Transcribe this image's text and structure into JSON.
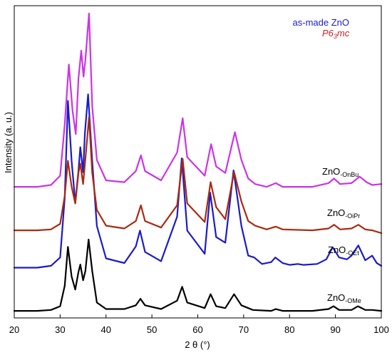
{
  "chart_data": {
    "type": "line",
    "xlabel": "2 θ (°)",
    "ylabel": "Intensity (a. u.)",
    "xlim": [
      20,
      100
    ],
    "xticks": [
      "20",
      "30",
      "40",
      "50",
      "60",
      "70",
      "80",
      "90",
      "100"
    ],
    "grid": false,
    "legend_position": "top-right",
    "legend": [
      {
        "text": "as-made ZnO",
        "color": "#1a1acc"
      },
      {
        "main": "P6",
        "sub": "3",
        "tail": "mc",
        "color": "#cc2222"
      }
    ],
    "series": [
      {
        "name": "ZnO-OMe",
        "label_main": "ZnO",
        "label_sub": "-OMe",
        "color": "#000000",
        "x": [
          20,
          25,
          28,
          30,
          31,
          31.7,
          32.5,
          33.3,
          34.0,
          34.4,
          35.0,
          35.5,
          36.2,
          37.0,
          38,
          40,
          44,
          46.5,
          47.5,
          48.5,
          52,
          55.5,
          56.6,
          57.7,
          61.5,
          62.8,
          64,
          66,
          67.9,
          69.5,
          72,
          76,
          77,
          78.5,
          85,
          88.5,
          89.6,
          90.8,
          93.5,
          94.9,
          96.5,
          98,
          100
        ],
        "y": [
          0.3,
          0.3,
          0.4,
          0.8,
          3.0,
          7.2,
          4.0,
          2.6,
          4.5,
          5.3,
          3.6,
          4.6,
          8.0,
          4.6,
          1.2,
          0.5,
          0.5,
          0.9,
          1.6,
          0.9,
          0.5,
          1.4,
          2.9,
          1.2,
          0.6,
          2.1,
          0.8,
          0.6,
          2.1,
          0.9,
          0.4,
          0.3,
          0.5,
          0.3,
          0.3,
          0.5,
          0.8,
          0.4,
          0.4,
          0.8,
          0.4,
          0.4,
          0.3
        ]
      },
      {
        "name": "ZnO-OEt",
        "label_main": "ZnO",
        "label_sub": "-OEt",
        "color": "#1a1acc",
        "x": [
          20,
          25,
          28,
          30,
          31,
          31.7,
          32.5,
          33.3,
          34.0,
          34.4,
          35.0,
          35.4,
          36.1,
          37.0,
          38,
          40,
          44,
          46.5,
          47.4,
          48.5,
          52,
          55.5,
          56.5,
          57.7,
          61.5,
          62.7,
          64,
          66,
          67.8,
          69.5,
          71,
          72.3,
          74,
          76,
          76.9,
          78.5,
          80,
          81.8,
          83,
          86,
          88,
          89.4,
          90.8,
          92.5,
          93.5,
          95.0,
          96.5,
          98.0,
          99,
          100
        ],
        "y": [
          0.5,
          0.5,
          0.7,
          1.6,
          8.0,
          18.5,
          12.0,
          7.5,
          11.0,
          13.5,
          10.8,
          15.0,
          19.2,
          12.0,
          5.0,
          1.5,
          1.0,
          2.8,
          4.5,
          2.2,
          1.2,
          6.0,
          12.3,
          4.5,
          2.0,
          8.6,
          3.8,
          3.2,
          11.0,
          5.0,
          1.8,
          1.6,
          0.9,
          1.1,
          1.6,
          1.0,
          0.8,
          0.9,
          0.8,
          0.9,
          1.4,
          2.7,
          1.6,
          1.4,
          1.8,
          2.9,
          1.3,
          1.8,
          1.0,
          0.7
        ]
      },
      {
        "name": "ZnO-OiPr",
        "label_main": "ZnO",
        "label_sub": "-OiPr",
        "color": "#aa2a10",
        "x": [
          20,
          25,
          28,
          30,
          31,
          31.7,
          32.5,
          33.3,
          34.0,
          34.4,
          35.0,
          35.5,
          36.3,
          37.0,
          38,
          40,
          44,
          46.5,
          47.6,
          48.5,
          52,
          55.5,
          56.7,
          57.7,
          61.5,
          62.8,
          64,
          66,
          67.9,
          69.5,
          71,
          72.5,
          75,
          77,
          78.5,
          85,
          88.5,
          89.7,
          91,
          93.5,
          95.0,
          96.5,
          98,
          100
        ],
        "y": [
          0.3,
          0.3,
          0.4,
          1.0,
          4.0,
          7.8,
          5.0,
          3.2,
          6.5,
          7.5,
          5.3,
          8.0,
          12.5,
          6.5,
          2.5,
          0.8,
          0.5,
          1.3,
          3.0,
          1.3,
          0.6,
          3.0,
          8.0,
          3.2,
          1.2,
          5.5,
          2.8,
          1.5,
          6.6,
          3.4,
          1.3,
          0.8,
          0.4,
          0.7,
          0.4,
          0.3,
          0.5,
          0.9,
          0.4,
          0.5,
          0.9,
          0.4,
          0.3,
          0.0
        ]
      },
      {
        "name": "ZnO-OnBu",
        "label_main": "ZnO",
        "label_sub": "-OnBu",
        "color": "#cc33e6",
        "x": [
          20,
          25,
          28,
          30,
          31,
          31.9,
          32.7,
          33.4,
          34.0,
          34.6,
          35.1,
          35.5,
          36.3,
          37.0,
          38,
          40,
          44,
          46.5,
          47.6,
          48.5,
          52,
          55.5,
          56.7,
          57.7,
          61.5,
          62.9,
          64,
          66,
          68.1,
          69.5,
          71,
          72.5,
          75,
          77.0,
          78.5,
          85,
          88.5,
          89.7,
          91,
          93.5,
          95.3,
          96.8,
          98,
          100
        ],
        "y": [
          0.3,
          0.3,
          0.5,
          1.5,
          7.0,
          13.5,
          8.5,
          6.0,
          12.0,
          15.0,
          12.2,
          14.0,
          19.0,
          9.0,
          3.2,
          1.0,
          0.8,
          2.0,
          3.7,
          2.0,
          1.0,
          4.0,
          7.7,
          3.5,
          1.5,
          4.9,
          2.5,
          1.8,
          6.2,
          3.2,
          1.2,
          0.6,
          0.3,
          0.7,
          0.3,
          0.3,
          0.7,
          1.2,
          0.6,
          0.7,
          1.4,
          0.8,
          0.5,
          0.6
        ]
      }
    ]
  }
}
